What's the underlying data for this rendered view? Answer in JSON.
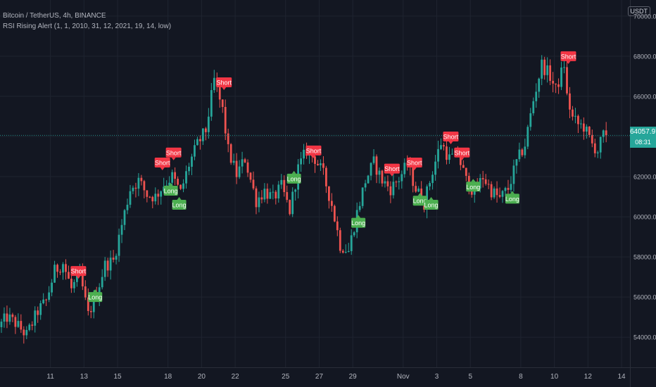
{
  "header": {
    "symbol_line": "Bitcoin / TetherUS, 4h, BINANCE",
    "indicator_line": "RSI Rising Alert (1, 1, 2010, 31, 12, 2021, 19, 14, low)",
    "currency": "USDT"
  },
  "price_tag": {
    "price": "64057.97",
    "countdown": "08:31"
  },
  "colors": {
    "background": "#131722",
    "grid": "#1f2430",
    "up": "#26a69a",
    "down": "#ef5350",
    "long_label": "#4caf50",
    "short_label": "#f23645",
    "axis_text": "#b2b5be",
    "price_line": "#26a69a"
  },
  "chart_data": {
    "type": "candlestick",
    "y_axis": {
      "side": "right",
      "range": [
        52500,
        70800
      ],
      "tick_values": [
        54000,
        56000,
        58000,
        60000,
        62000,
        64000,
        66000,
        68000,
        70000
      ],
      "tick_labels": [
        "54000.00",
        "56000.00",
        "58000.00",
        "60000.00",
        "62000.00",
        "64000.00",
        "66000.00",
        "68000.00",
        "70000.00"
      ]
    },
    "x_axis": {
      "start": "2021-10-08T00:00",
      "end": "2021-11-14T12:00",
      "tick_dates": [
        "2021-10-11",
        "2021-10-13",
        "2021-10-15",
        "2021-10-18",
        "2021-10-20",
        "2021-10-22",
        "2021-10-25",
        "2021-10-27",
        "2021-10-29",
        "2021-11-01",
        "2021-11-03",
        "2021-11-05",
        "2021-11-08",
        "2021-11-10",
        "2021-11-12",
        "2021-11-14"
      ],
      "tick_labels": [
        "11",
        "13",
        "15",
        "18",
        "20",
        "22",
        "25",
        "27",
        "29",
        "Nov",
        "3",
        "5",
        "8",
        "10",
        "12",
        "14"
      ]
    },
    "last_price": 64057.97,
    "close_path": [
      [
        "2021-10-08T00:00",
        54500
      ],
      [
        "2021-10-08T12:00",
        55000
      ],
      [
        "2021-10-09T00:00",
        54700
      ],
      [
        "2021-10-09T16:00",
        54100
      ],
      [
        "2021-10-10T08:00",
        55300
      ],
      [
        "2021-10-10T20:00",
        55800
      ],
      [
        "2021-10-11T08:00",
        57300
      ],
      [
        "2021-10-11T20:00",
        57700
      ],
      [
        "2021-10-12T08:00",
        56400
      ],
      [
        "2021-10-12T20:00",
        57100
      ],
      [
        "2021-10-13T08:00",
        55100
      ],
      [
        "2021-10-13T20:00",
        56200
      ],
      [
        "2021-10-14T08:00",
        57600
      ],
      [
        "2021-10-14T20:00",
        57800
      ],
      [
        "2021-10-15T08:00",
        59600
      ],
      [
        "2021-10-15T20:00",
        61400
      ],
      [
        "2021-10-16T08:00",
        61800
      ],
      [
        "2021-10-16T20:00",
        61100
      ],
      [
        "2021-10-17T08:00",
        61000
      ],
      [
        "2021-10-17T20:00",
        61600
      ],
      [
        "2021-10-18T08:00",
        62000
      ],
      [
        "2021-10-18T20:00",
        61200
      ],
      [
        "2021-10-19T08:00",
        62600
      ],
      [
        "2021-10-19T20:00",
        63600
      ],
      [
        "2021-10-20T08:00",
        64300
      ],
      [
        "2021-10-20T20:00",
        66800
      ],
      [
        "2021-10-21T08:00",
        65300
      ],
      [
        "2021-10-21T16:00",
        63300
      ],
      [
        "2021-10-22T04:00",
        62100
      ],
      [
        "2021-10-22T16:00",
        62900
      ],
      [
        "2021-10-23T08:00",
        60800
      ],
      [
        "2021-10-23T20:00",
        61300
      ],
      [
        "2021-10-24T08:00",
        60900
      ],
      [
        "2021-10-24T20:00",
        61500
      ],
      [
        "2021-10-25T08:00",
        60300
      ],
      [
        "2021-10-25T20:00",
        62400
      ],
      [
        "2021-10-26T08:00",
        63300
      ],
      [
        "2021-10-26T20:00",
        62900
      ],
      [
        "2021-10-27T08:00",
        62100
      ],
      [
        "2021-10-27T20:00",
        60600
      ],
      [
        "2021-10-28T08:00",
        58600
      ],
      [
        "2021-10-28T20:00",
        58300
      ],
      [
        "2021-10-29T08:00",
        60200
      ],
      [
        "2021-10-29T20:00",
        61800
      ],
      [
        "2021-10-30T08:00",
        62700
      ],
      [
        "2021-10-30T20:00",
        61800
      ],
      [
        "2021-10-31T08:00",
        61400
      ],
      [
        "2021-10-31T20:00",
        61900
      ],
      [
        "2021-11-01T08:00",
        62600
      ],
      [
        "2021-11-01T20:00",
        61400
      ],
      [
        "2021-11-02T08:00",
        60700
      ],
      [
        "2021-11-02T20:00",
        62300
      ],
      [
        "2021-11-03T08:00",
        63700
      ],
      [
        "2021-11-03T20:00",
        62900
      ],
      [
        "2021-11-04T08:00",
        63100
      ],
      [
        "2021-11-04T20:00",
        61800
      ],
      [
        "2021-11-05T08:00",
        61200
      ],
      [
        "2021-11-05T20:00",
        62000
      ],
      [
        "2021-11-06T08:00",
        61300
      ],
      [
        "2021-11-06T20:00",
        60900
      ],
      [
        "2021-11-07T08:00",
        61400
      ],
      [
        "2021-11-07T20:00",
        62700
      ],
      [
        "2021-11-08T08:00",
        63600
      ],
      [
        "2021-11-08T20:00",
        65800
      ],
      [
        "2021-11-09T08:00",
        67600
      ],
      [
        "2021-11-09T20:00",
        67000
      ],
      [
        "2021-11-10T04:00",
        66300
      ],
      [
        "2021-11-10T16:00",
        67600
      ],
      [
        "2021-11-10T20:00",
        66000
      ],
      [
        "2021-11-11T04:00",
        64900
      ],
      [
        "2021-11-11T12:00",
        64600
      ],
      [
        "2021-11-11T20:00",
        64500
      ],
      [
        "2021-11-12T08:00",
        63600
      ],
      [
        "2021-11-12T16:00",
        63300
      ],
      [
        "2021-11-13T00:00",
        64057.97
      ]
    ],
    "signals": [
      {
        "type": "Short",
        "time": "2021-10-12T16:00",
        "price": 57300
      },
      {
        "type": "Long",
        "time": "2021-10-13T16:00",
        "price": 56000
      },
      {
        "type": "Short",
        "time": "2021-10-17T16:00",
        "price": 62700
      },
      {
        "type": "Short",
        "time": "2021-10-18T08:00",
        "price": 63200
      },
      {
        "type": "Long",
        "time": "2021-10-18T04:00",
        "price": 61300
      },
      {
        "type": "Long",
        "time": "2021-10-18T16:00",
        "price": 60600
      },
      {
        "type": "Short",
        "time": "2021-10-21T08:00",
        "price": 66700
      },
      {
        "type": "Long",
        "time": "2021-10-25T12:00",
        "price": 61900
      },
      {
        "type": "Short",
        "time": "2021-10-26T16:00",
        "price": 63300
      },
      {
        "type": "Long",
        "time": "2021-10-29T08:00",
        "price": 59700
      },
      {
        "type": "Short",
        "time": "2021-10-31T08:00",
        "price": 62400
      },
      {
        "type": "Short",
        "time": "2021-11-01T16:00",
        "price": 62700
      },
      {
        "type": "Long",
        "time": "2021-11-02T00:00",
        "price": 60800
      },
      {
        "type": "Long",
        "time": "2021-11-02T16:00",
        "price": 60600
      },
      {
        "type": "Short",
        "time": "2021-11-03T20:00",
        "price": 64000
      },
      {
        "type": "Short",
        "time": "2021-11-04T12:00",
        "price": 63200
      },
      {
        "type": "Long",
        "time": "2021-11-05T04:00",
        "price": 61500
      },
      {
        "type": "Long",
        "time": "2021-11-07T12:00",
        "price": 60900
      },
      {
        "type": "Short",
        "time": "2021-11-10T20:00",
        "price": 68000
      }
    ]
  }
}
